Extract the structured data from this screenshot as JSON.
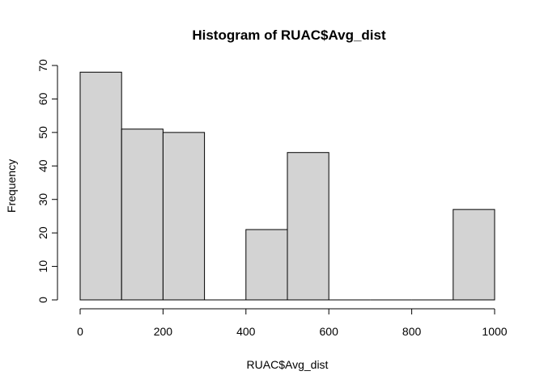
{
  "chart_data": {
    "type": "bar",
    "title": "Histogram of RUAC$Avg_dist",
    "xlabel": "RUAC$Avg_dist",
    "ylabel": "Frequency",
    "bins": [
      {
        "start": 0,
        "end": 100,
        "count": 68
      },
      {
        "start": 100,
        "end": 200,
        "count": 51
      },
      {
        "start": 200,
        "end": 300,
        "count": 50
      },
      {
        "start": 300,
        "end": 400,
        "count": 0
      },
      {
        "start": 400,
        "end": 500,
        "count": 21
      },
      {
        "start": 500,
        "end": 600,
        "count": 44
      },
      {
        "start": 600,
        "end": 700,
        "count": 0
      },
      {
        "start": 700,
        "end": 800,
        "count": 0
      },
      {
        "start": 800,
        "end": 900,
        "count": 0
      },
      {
        "start": 900,
        "end": 1000,
        "count": 27
      }
    ],
    "xlim": [
      0,
      1000
    ],
    "ylim": [
      0,
      70
    ],
    "xticks": [
      "0",
      "200",
      "400",
      "600",
      "800",
      "1000"
    ],
    "yticks": [
      "0",
      "10",
      "20",
      "30",
      "40",
      "50",
      "60",
      "70"
    ],
    "grid": false,
    "bar_color": "#d3d3d3",
    "edge_color": "#000000"
  }
}
